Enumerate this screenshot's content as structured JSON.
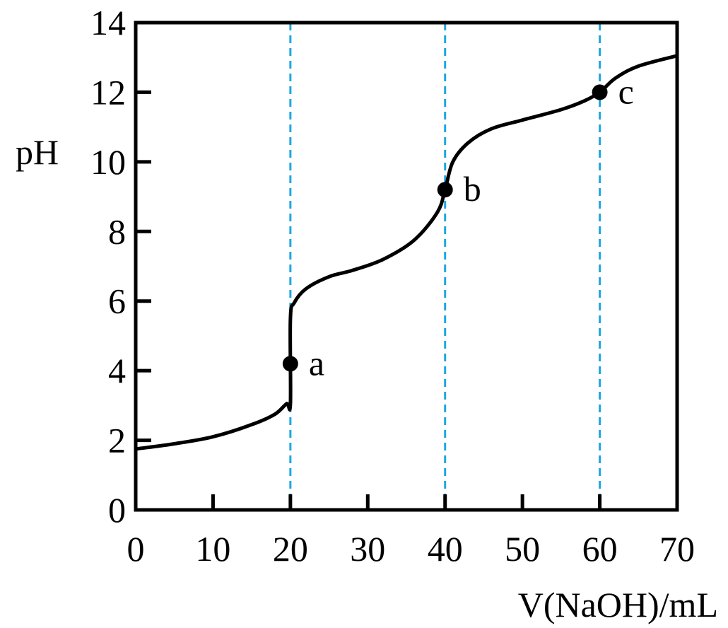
{
  "chart_data": {
    "type": "line",
    "title": "",
    "xlabel": "V(NaOH)/mL",
    "ylabel": "pH",
    "xlim": [
      0,
      70
    ],
    "ylim": [
      0,
      14
    ],
    "x_ticks": [
      0,
      10,
      20,
      30,
      40,
      50,
      60,
      70
    ],
    "y_ticks": [
      0,
      2,
      4,
      6,
      8,
      10,
      12,
      14
    ],
    "grid": false,
    "reference_lines": {
      "orientation": "vertical",
      "style": "dashed",
      "color": "#1ea7e1",
      "x": [
        20,
        40,
        60
      ]
    },
    "series": [
      {
        "color": "#000000",
        "points": [
          [
            0,
            1.75
          ],
          [
            5,
            1.9
          ],
          [
            10,
            2.1
          ],
          [
            15,
            2.45
          ],
          [
            18,
            2.75
          ],
          [
            19.5,
            3.05
          ],
          [
            20,
            3.05
          ],
          [
            20,
            5.5
          ],
          [
            20.5,
            5.95
          ],
          [
            22,
            6.35
          ],
          [
            25,
            6.7
          ],
          [
            28,
            6.88
          ],
          [
            32,
            7.2
          ],
          [
            36,
            7.75
          ],
          [
            39,
            8.55
          ],
          [
            40,
            9.2
          ],
          [
            41,
            10.0
          ],
          [
            43,
            10.55
          ],
          [
            46,
            10.95
          ],
          [
            50,
            11.2
          ],
          [
            55,
            11.5
          ],
          [
            58,
            11.75
          ],
          [
            60,
            12.0
          ],
          [
            62,
            12.4
          ],
          [
            65,
            12.75
          ],
          [
            70,
            13.05
          ]
        ]
      }
    ],
    "marked_points": [
      {
        "label": "a",
        "x": 20,
        "y": 4.2
      },
      {
        "label": "b",
        "x": 40,
        "y": 9.2
      },
      {
        "label": "c",
        "x": 60,
        "y": 12.0
      }
    ]
  }
}
